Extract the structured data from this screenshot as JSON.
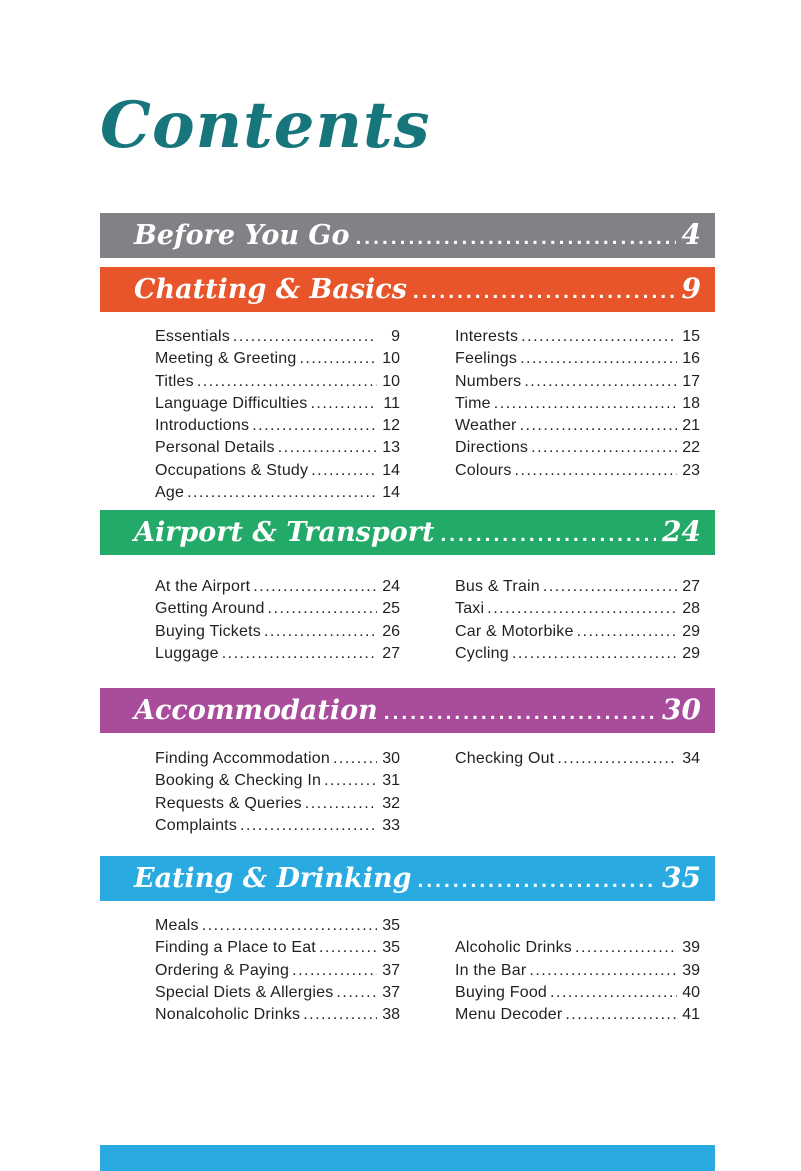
{
  "page": {
    "title": "Contents",
    "colors": {
      "title_teal": "#17767C",
      "entry_text": "#231F20",
      "before_you_go_gray": "#808285",
      "chatting_orange": "#E8552B",
      "airport_green": "#23A968",
      "accommodation_purple": "#A94C9B",
      "eating_cyan": "#29ABE2",
      "next_bar_blue": "#29ABE2"
    }
  },
  "sections": [
    {
      "title": "Before You Go",
      "page": "4",
      "color": "#808285",
      "right_column_offset": 0,
      "columns": [
        [],
        []
      ]
    },
    {
      "title": "Chatting & Basics",
      "page": "9",
      "color": "#E8552B",
      "right_column_offset": 0,
      "columns": [
        [
          {
            "label": "Essentials",
            "page": "9"
          },
          {
            "label": "Meeting & Greeting",
            "page": "10"
          },
          {
            "label": "Titles",
            "page": "10"
          },
          {
            "label": "Language Difficulties",
            "page": "11"
          },
          {
            "label": "Introductions",
            "page": "12"
          },
          {
            "label": "Personal Details",
            "page": "13"
          },
          {
            "label": "Occupations & Study",
            "page": "14"
          },
          {
            "label": "Age",
            "page": "14"
          }
        ],
        [
          {
            "label": "Interests",
            "page": "15"
          },
          {
            "label": "Feelings",
            "page": "16"
          },
          {
            "label": "Numbers",
            "page": "17"
          },
          {
            "label": "Time",
            "page": "18"
          },
          {
            "label": "Weather",
            "page": "21"
          },
          {
            "label": "Directions",
            "page": "22"
          },
          {
            "label": "Colours",
            "page": "23"
          }
        ]
      ]
    },
    {
      "title": "Airport & Transport",
      "page": "24",
      "color": "#23A968",
      "right_column_offset": 0,
      "columns": [
        [
          {
            "label": "At the Airport",
            "page": "24"
          },
          {
            "label": "Getting Around",
            "page": "25"
          },
          {
            "label": "Buying Tickets",
            "page": "26"
          },
          {
            "label": "Luggage",
            "page": "27"
          }
        ],
        [
          {
            "label": "Bus & Train",
            "page": "27"
          },
          {
            "label": "Taxi",
            "page": "28"
          },
          {
            "label": "Car & Motorbike",
            "page": "29"
          },
          {
            "label": "Cycling",
            "page": "29"
          }
        ]
      ]
    },
    {
      "title": "Accommodation",
      "page": "30",
      "color": "#A94C9B",
      "right_column_offset": 0,
      "columns": [
        [
          {
            "label": "Finding Accommodation",
            "page": "30"
          },
          {
            "label": "Booking & Checking In",
            "page": "31"
          },
          {
            "label": "Requests & Queries",
            "page": "32"
          },
          {
            "label": "Complaints",
            "page": "33"
          }
        ],
        [
          {
            "label": "Checking Out",
            "page": "34"
          }
        ]
      ]
    },
    {
      "title": "Eating & Drinking",
      "page": "35",
      "color": "#29ABE2",
      "right_column_offset": 1,
      "columns": [
        [
          {
            "label": "Meals",
            "page": "35"
          },
          {
            "label": "Finding a Place to Eat",
            "page": "35"
          },
          {
            "label": "Ordering & Paying",
            "page": "37"
          },
          {
            "label": "Special Diets & Allergies",
            "page": "37"
          },
          {
            "label": "Nonalcoholic Drinks",
            "page": "38"
          }
        ],
        [
          {
            "label": "Alcoholic Drinks",
            "page": "39"
          },
          {
            "label": "In the Bar",
            "page": "39"
          },
          {
            "label": "Buying Food",
            "page": "40"
          },
          {
            "label": "Menu Decoder",
            "page": "41"
          }
        ]
      ]
    }
  ]
}
